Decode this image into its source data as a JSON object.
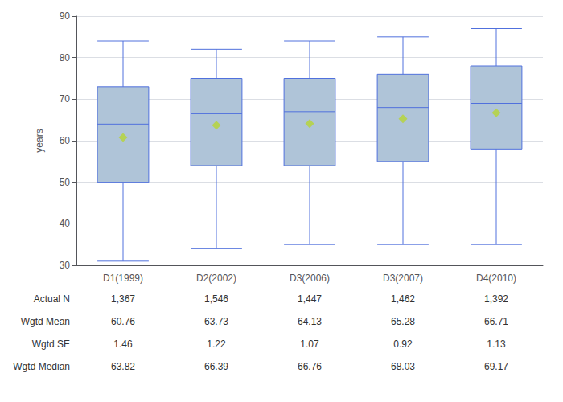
{
  "chart_data": {
    "type": "box",
    "ylabel": "years",
    "categories": [
      "D1(1999)",
      "D2(2002)",
      "D3(2006)",
      "D3(2007)",
      "D4(2010)"
    ],
    "boxes": [
      {
        "low": 31,
        "q1": 50,
        "median": 64,
        "q3": 73,
        "high": 84
      },
      {
        "low": 34,
        "q1": 54,
        "median": 66.5,
        "q3": 75,
        "high": 82
      },
      {
        "low": 35,
        "q1": 54,
        "median": 67,
        "q3": 75,
        "high": 84
      },
      {
        "low": 35,
        "q1": 55,
        "median": 68,
        "q3": 76,
        "high": 85
      },
      {
        "low": 35,
        "q1": 58,
        "median": 69,
        "q3": 78,
        "high": 87
      }
    ],
    "means": [
      60.76,
      63.73,
      64.13,
      65.28,
      66.71
    ],
    "marker": "diamond",
    "color": "#afc4d8",
    "ylim": [
      30,
      90
    ],
    "yticks": [
      30,
      40,
      50,
      60,
      70,
      80,
      90
    ],
    "grid": true,
    "table": [
      {
        "label": "Actual N",
        "values": [
          "1,367",
          "1,546",
          "1,447",
          "1,462",
          "1,392"
        ]
      },
      {
        "label": "Wgtd Mean",
        "values": [
          "60.76",
          "63.73",
          "64.13",
          "65.28",
          "66.71"
        ]
      },
      {
        "label": "Wgtd SE",
        "values": [
          "1.46",
          "1.22",
          "1.07",
          "0.92",
          "1.13"
        ]
      },
      {
        "label": "Wgtd Median",
        "values": [
          "63.82",
          "66.39",
          "66.76",
          "68.03",
          "69.17"
        ]
      }
    ]
  }
}
